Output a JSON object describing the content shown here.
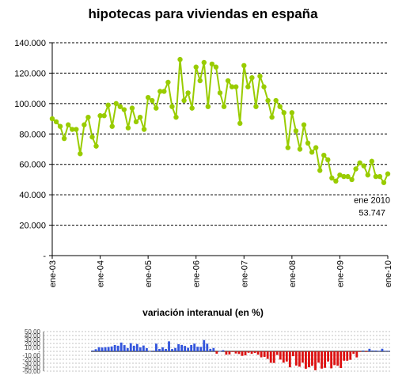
{
  "charts": {
    "main_title": "hipotecas para viviendas en españa",
    "sub_title": "variación interanual (en %)",
    "annotation": [
      "ene 2010",
      "53.747"
    ]
  },
  "chart_data": [
    {
      "type": "line",
      "title": "hipotecas para viviendas en españa",
      "x_tick_labels": [
        "ene-03",
        "ene-04",
        "ene-05",
        "ene-06",
        "ene-07",
        "ene-08",
        "ene-09",
        "ene-10"
      ],
      "y_tick_labels": [
        "-",
        "20.000",
        "40.000",
        "60.000",
        "80.000",
        "100.000",
        "120.000",
        "140.000"
      ],
      "ylim": [
        0,
        140000
      ],
      "grid": true,
      "line_color": "#99cc00",
      "series": [
        {
          "values": [
            90000,
            88000,
            85000,
            77000,
            86000,
            83000,
            83000,
            67000,
            86000,
            91000,
            78000,
            72000,
            92000,
            92000,
            99000,
            85000,
            100000,
            98000,
            96000,
            84000,
            97000,
            88000,
            91000,
            83000,
            104000,
            102000,
            97000,
            108000,
            108000,
            114000,
            98000,
            91000,
            129000,
            102000,
            107000,
            97000,
            124000,
            115000,
            127000,
            98000,
            126000,
            124000,
            107000,
            98000,
            115000,
            111000,
            111000,
            87000,
            125000,
            111000,
            117000,
            98000,
            118000,
            111000,
            102000,
            91000,
            102000,
            98000,
            94000,
            71000,
            94000,
            82000,
            70000,
            86000,
            74000,
            68000,
            71000,
            56000,
            66000,
            63000,
            51000,
            49000,
            53000,
            52000,
            52000,
            50000,
            57000,
            61000,
            59000,
            53000,
            62000,
            52000,
            52000,
            48000,
            53747
          ]
        }
      ]
    },
    {
      "type": "bar",
      "title": "variación interanual (en %)",
      "y_tick_labels": [
        "50,00",
        "40,00",
        "30,00",
        "20,00",
        "10,00",
        "-",
        "-10,00",
        "-20,00",
        "-30,00",
        "-40,00",
        "-50,00"
      ],
      "ylim": [
        -50,
        50
      ],
      "grid": true,
      "colors": {
        "positive": "#3355dd",
        "negative": "#dd1111"
      },
      "values": [
        2.2,
        5.4,
        10.5,
        9.7,
        10.6,
        11.2,
        12.4,
        16.1,
        14.2,
        22.2,
        15.8,
        8.4,
        20.7,
        14.2,
        18.6,
        10.3,
        14.7,
        8.2,
        0.4,
        1.7,
        19.5,
        6.1,
        10.2,
        6.1,
        25.3,
        5.8,
        8.6,
        18.2,
        16.3,
        13.7,
        9.0,
        16.0,
        19.6,
        11.6,
        11.3,
        28.6,
        19.3,
        6.3,
        8.5,
        -5.9,
        0.6,
        3.0,
        -8.4,
        -7.7,
        -1.3,
        -5.4,
        -6.6,
        -11.4,
        -10.1,
        -3.6,
        -6.3,
        -3.9,
        -8.4,
        -15.1,
        -14.0,
        -19.0,
        -28.9,
        -29.3,
        -9.1,
        -20.8,
        -28.6,
        -25.7,
        -40.4,
        -12.2,
        -35.9,
        -38.8,
        -28.6,
        -43.9,
        -40.3,
        -36.6,
        -47.7,
        -28.6,
        -43.6,
        -41.6,
        -25.7,
        -42.9,
        -34.7,
        -36.4,
        -42.0,
        -23.6,
        -23.7,
        -21.4,
        -6.3,
        -15.3,
        -1.6,
        2.1,
        -1.5,
        6.4,
        2.1,
        2.1,
        1.4,
        6.5,
        1.4,
        1.4
      ]
    }
  ]
}
